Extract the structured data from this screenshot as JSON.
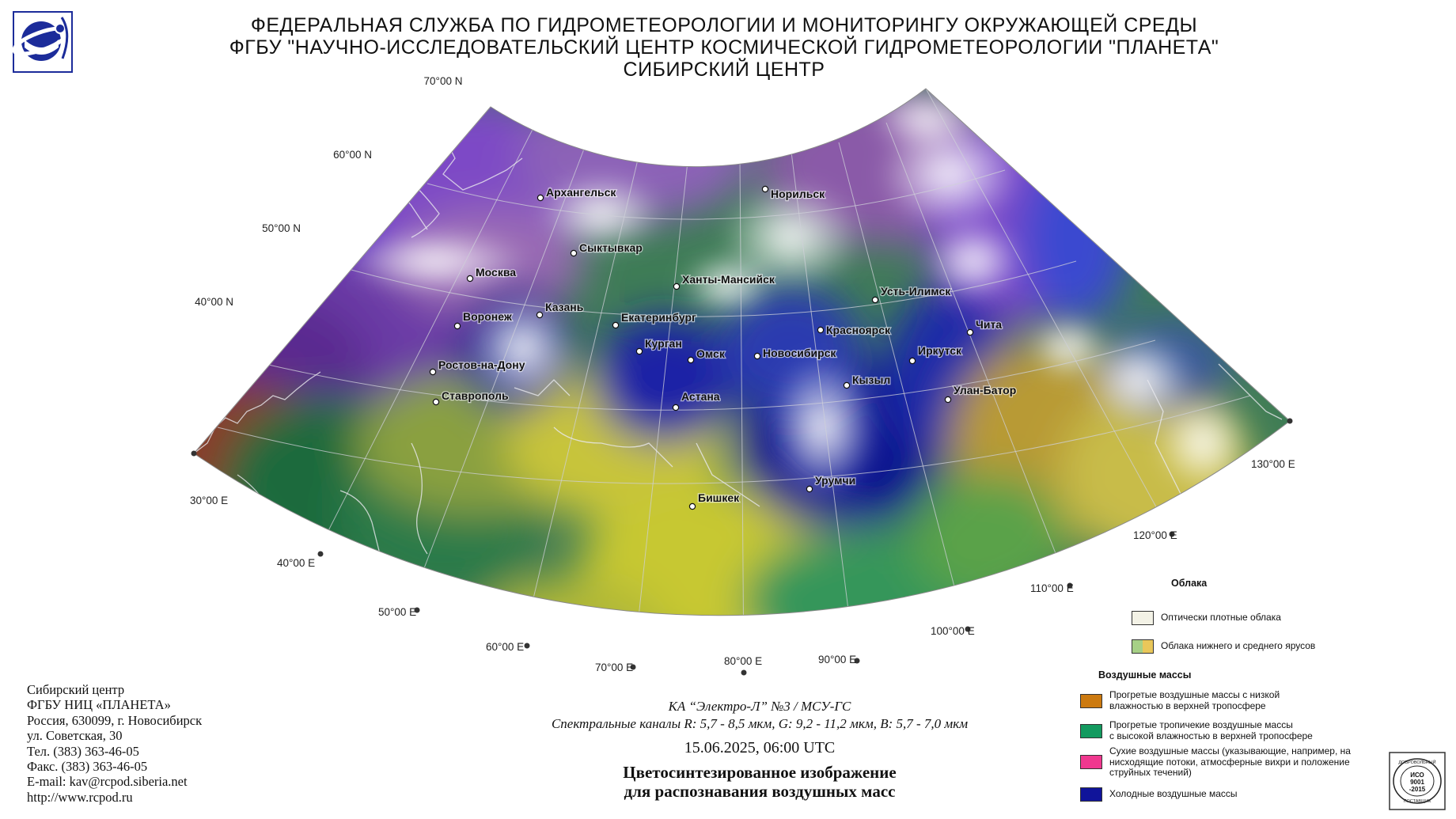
{
  "header": {
    "line1": "ФЕДЕРАЛЬНАЯ СЛУЖБА ПО ГИДРОМЕТЕОРОЛОГИИ И МОНИТОРИНГУ ОКРУЖАЮЩЕЙ СРЕДЫ",
    "line2": "ФГБУ \"НАУЧНО-ИССЛЕДОВАТЕЛЬСКИЙ ЦЕНТР КОСМИЧЕСКОЙ ГИДРОМЕТЕОРОЛОГИИ \"ПЛАНЕТА\"",
    "line3": "СИБИРСКИЙ ЦЕНТР"
  },
  "map": {
    "lat_labels": [
      "70°00 N",
      "60°00 N",
      "50°00 N",
      "40°00 N"
    ],
    "lon_labels": [
      "30°00 E",
      "40°00 E",
      "50°00 E",
      "60°00 E",
      "70°00 E",
      "80°00 E",
      "90°00 E",
      "100°00 E",
      "110°00 E",
      "120°00 E",
      "130°00 E"
    ],
    "cities": [
      {
        "name": "Архангельск"
      },
      {
        "name": "Норильск"
      },
      {
        "name": "Сыктывкар"
      },
      {
        "name": "Москва"
      },
      {
        "name": "Ханты-Мансийск"
      },
      {
        "name": "Усть-Илимск"
      },
      {
        "name": "Казань"
      },
      {
        "name": "Воронеж"
      },
      {
        "name": "Екатеринбург"
      },
      {
        "name": "Красноярск"
      },
      {
        "name": "Чита"
      },
      {
        "name": "Курган"
      },
      {
        "name": "Омск"
      },
      {
        "name": "Новосибирск"
      },
      {
        "name": "Иркутск"
      },
      {
        "name": "Ростов-на-Дону"
      },
      {
        "name": "Кызыл"
      },
      {
        "name": "Улан-Батор"
      },
      {
        "name": "Астана"
      },
      {
        "name": "Ставрополь"
      },
      {
        "name": "Урумчи"
      },
      {
        "name": "Бишкек"
      }
    ]
  },
  "contact": {
    "line1": "Сибирский центр",
    "line2": "ФГБУ НИЦ «ПЛАНЕТА»",
    "line3": "Россия, 630099, г. Новосибирск",
    "line4": "ул. Советская, 30",
    "line5": "Тел. (383) 363-46-05",
    "line6": "Факс. (383) 363-46-05",
    "line7": "E-mail: kav@rcpod.siberia.net",
    "line8": "http://www.rcpod.ru"
  },
  "caption": {
    "satellite": "КА “Электро-Л” №3 / МСУ-ГС",
    "channels": "Спектральные каналы R: 5,7 - 8,5 мкм, G: 9,2 - 11,2 мкм, B: 5,7 - 7,0 мкм",
    "datetime": "15.06.2025, 06:00 UTC",
    "title_line1": "Цветосинтезированное изображение",
    "title_line2": "для распознавания воздушных масс"
  },
  "legend": {
    "clouds_title": "Облака",
    "clouds": [
      {
        "label": "Оптически плотные облака",
        "colors": [
          "#f3f2e6"
        ]
      },
      {
        "label": "Облака нижнего и среднего ярусов",
        "colors": [
          "#a6d086",
          "#e9c75a"
        ]
      }
    ],
    "air_title": "Воздушные массы",
    "air": [
      {
        "label1": "Прогретые воздушные массы с низкой",
        "label2": "влажностью в верхней тропосфере",
        "label3": "",
        "color": "#cc7a10"
      },
      {
        "label1": "Прогретые тропичекие воздушные массы",
        "label2": "с высокой влажностью в верхней тропосфере",
        "label3": "",
        "color": "#139a5f"
      },
      {
        "label1": "Сухие воздушные массы (указывающие, например, на",
        "label2": "нисходящие потоки, атмосферные вихри и положение",
        "label3": "струйных течений)",
        "color": "#f0388f"
      },
      {
        "label1": "Холодные воздушные массы",
        "label2": "",
        "label3": "",
        "color": "#10149a"
      }
    ]
  },
  "badge": {
    "top": "ДОБРОВОЛЬНЫЙ",
    "line1": "ИСО",
    "line2": "9001",
    "line3": "-2015",
    "bottom": "ПОСТАВЩИК"
  }
}
